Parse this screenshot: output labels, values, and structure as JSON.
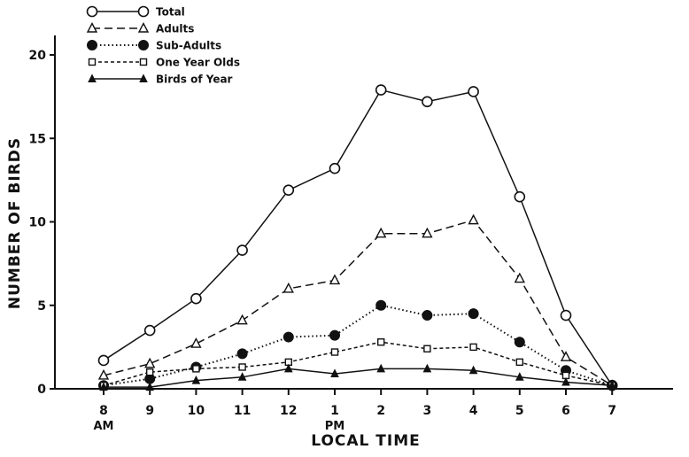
{
  "chart_data": {
    "type": "line",
    "title": "",
    "xlabel": "LOCAL TIME",
    "ylabel": "NUMBER OF BIRDS",
    "categories": [
      "8",
      "9",
      "10",
      "11",
      "12",
      "1",
      "2",
      "3",
      "4",
      "5",
      "6",
      "7"
    ],
    "category_sublabels": {
      "8": "AM",
      "1": "PM"
    },
    "yticks": [
      0,
      5,
      10,
      15,
      20
    ],
    "ylim": [
      0,
      21
    ],
    "grid": false,
    "legend_placement": "top-left",
    "series": [
      {
        "name": "Total",
        "style": "solid",
        "marker": "open-circle",
        "values": [
          1.7,
          3.5,
          5.4,
          8.3,
          11.9,
          13.2,
          17.9,
          17.2,
          17.8,
          11.5,
          4.4,
          0.2
        ]
      },
      {
        "name": "Adults",
        "style": "long-dash",
        "marker": "open-triangle",
        "values": [
          0.8,
          1.5,
          2.7,
          4.1,
          6.0,
          6.5,
          9.3,
          9.3,
          10.1,
          6.6,
          1.9,
          0.2
        ]
      },
      {
        "name": "Sub-Adults",
        "style": "dotted",
        "marker": "filled-circle",
        "values": [
          0.2,
          0.6,
          1.3,
          2.1,
          3.1,
          3.2,
          5.0,
          4.4,
          4.5,
          2.8,
          1.1,
          0.2
        ]
      },
      {
        "name": "One Year Olds",
        "style": "short-dash",
        "marker": "open-square",
        "values": [
          0.2,
          1.0,
          1.2,
          1.3,
          1.6,
          2.2,
          2.8,
          2.4,
          2.5,
          1.6,
          0.8,
          0.2
        ]
      },
      {
        "name": "Birds of Year",
        "style": "solid",
        "marker": "filled-triangle",
        "values": [
          0.1,
          0.1,
          0.5,
          0.7,
          1.2,
          0.9,
          1.2,
          1.2,
          1.1,
          0.7,
          0.4,
          0.2
        ]
      }
    ]
  }
}
